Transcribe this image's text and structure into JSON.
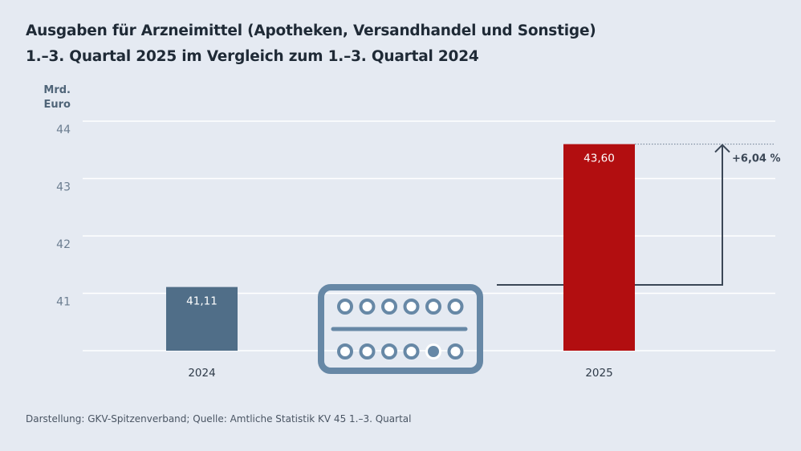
{
  "header": {
    "title_line1": "Ausgaben für Arzneimittel (Apotheken, Versandhandel und Sonstige)",
    "title_line2": "1.–3. Quartal 2025 im Vergleich zum 1.–3. Quartal 2024"
  },
  "footer": {
    "source": "Darstellung: GKV-Spitzenverband; Quelle: Amtliche Statistik KV 45 1.–3. Quartal"
  },
  "chart_data": {
    "type": "bar",
    "title": "Ausgaben für Arzneimittel (Apotheken, Versandhandel und Sonstige) 1.–3. Quartal 2025 im Vergleich zum 1.–3. Quartal 2024",
    "ylabel": "Mrd. Euro",
    "ylabel_lines": [
      "Mrd.",
      "Euro"
    ],
    "categories": [
      "2024",
      "2025"
    ],
    "values": [
      41.11,
      43.6
    ],
    "value_labels": [
      "41,11",
      "43,60"
    ],
    "ylim": [
      40,
      44
    ],
    "yticks": [
      41,
      42,
      43,
      44
    ],
    "grid": true,
    "colors": [
      "#506e88",
      "#b20e10"
    ],
    "annotation": {
      "text": "+6,04 %",
      "from": "2024",
      "to": "2025"
    },
    "icon": "pill-blister-icon"
  }
}
